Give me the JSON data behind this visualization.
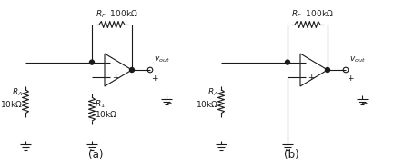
{
  "fig_width": 4.33,
  "fig_height": 1.85,
  "dpi": 100,
  "bg_color": "#ffffff",
  "line_color": "#1a1a1a",
  "line_width": 0.8,
  "label_a": "(a)",
  "label_b": "(b)",
  "font_size": 6.5,
  "label_font_size": 8.5,
  "rf_label": "$R_F$  100k$\\Omega$",
  "ra_label_a": "$R_A$\n10k$\\Omega$",
  "ra_label_b": "$R_A$\n10k$\\Omega$",
  "r1_label": "$R_1$",
  "r1_val": "  10k$\\Omega$",
  "vout_label": "$v_{out}$"
}
